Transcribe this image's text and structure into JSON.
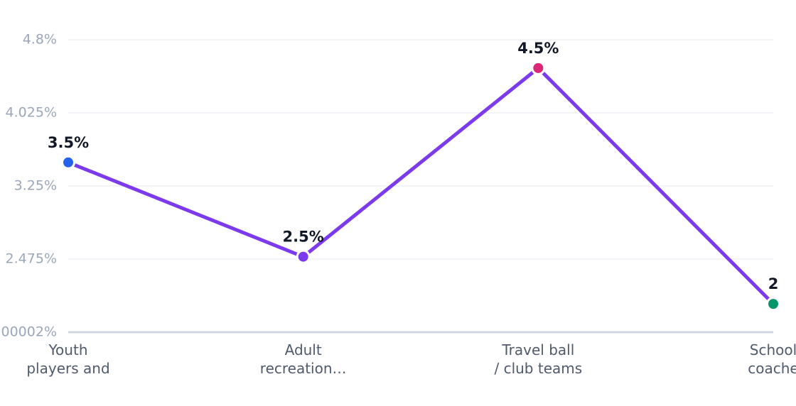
{
  "chart_data": {
    "type": "line",
    "categories": [
      [
        "Youth",
        "players and"
      ],
      [
        "Adult",
        "recreation…"
      ],
      [
        "Travel ball",
        "/ club teams"
      ],
      [
        "School",
        "coache"
      ]
    ],
    "series": [
      {
        "values": [
          3.5,
          2.5,
          4.5,
          2.0
        ],
        "line_color": "#7c3aed",
        "point_colors": [
          "#2563eb",
          "#7c3aed",
          "#db2777",
          "#059669"
        ]
      }
    ],
    "data_labels": [
      "3.5%",
      "2.5%",
      "4.5%",
      "2"
    ],
    "y_ticks": [
      {
        "value": 1.7,
        "label": "00002%"
      },
      {
        "value": 2.475,
        "label": "2.475%"
      },
      {
        "value": 3.25,
        "label": "3.25%"
      },
      {
        "value": 4.025,
        "label": "4.025%"
      },
      {
        "value": 4.8,
        "label": "4.8%"
      }
    ],
    "ylim": [
      1.7,
      4.8
    ],
    "grid": true,
    "title": "",
    "xlabel": "",
    "ylabel": "",
    "colors": {
      "grid": "#eef1f5",
      "baseline": "#cfd6df",
      "y_tick_text": "#9aa7bb",
      "x_tick_text": "#4f5b6d",
      "data_label_text": "#111827"
    }
  }
}
